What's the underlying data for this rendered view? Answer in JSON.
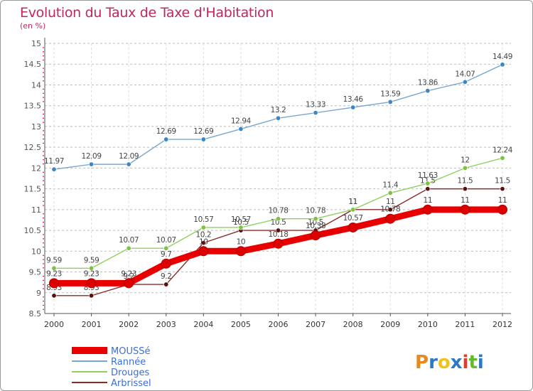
{
  "title": "Evolution du Taux de Taxe d'Habitation",
  "subtitle": "(en %)",
  "brand": {
    "text": "Proxiti"
  },
  "colors": {
    "title": "#c0285a",
    "axis": "#555555",
    "grid": "#bbbbbb",
    "tick_marks": "#e0204a",
    "brand_letters": [
      "#e8891c",
      "#2b79c6",
      "#f0c21a",
      "#2b79c6",
      "#e83a2a",
      "#66b82f",
      "#2b79c6"
    ]
  },
  "chart_data": {
    "type": "line",
    "title": "Evolution du Taux de Taxe d'Habitation",
    "subtitle": "(en %)",
    "xlabel": "",
    "ylabel": "",
    "x": [
      "2000",
      "2001",
      "2002",
      "2003",
      "2004",
      "2005",
      "2006",
      "2007",
      "2008",
      "2009",
      "2010",
      "2011",
      "2012"
    ],
    "ylim": [
      8.5,
      15
    ],
    "yticks": [
      "8.5",
      "9",
      "9.5",
      "10",
      "10.5",
      "11",
      "11.5",
      "12",
      "12.5",
      "13",
      "13.5",
      "14",
      "14.5",
      "15"
    ],
    "grid": "horizontal dashed",
    "legend_position": "bottom-left",
    "series": [
      {
        "name": "Arbrissel",
        "color": "#8b2c2c",
        "marker": "#5a1010",
        "values": [
          8.93,
          8.93,
          9.2,
          9.2,
          10.2,
          10.5,
          10.5,
          10.5,
          11,
          11,
          11.5,
          11.5,
          11.5
        ],
        "labels": [
          "8.93",
          "8.93",
          "9.2",
          "9.2",
          "10.2",
          "10.5",
          "10.5",
          "10.5",
          "11",
          "11",
          "11.5",
          "11.5",
          "11.5"
        ]
      },
      {
        "name": "Drouges",
        "color": "#90d060",
        "marker": "#7cc33f",
        "values": [
          9.59,
          9.59,
          10.07,
          10.07,
          10.57,
          10.57,
          10.78,
          10.78,
          11,
          11.4,
          11.63,
          12,
          12.24
        ],
        "labels": [
          "9.59",
          "9.59",
          "10.07",
          "10.07",
          "10.57",
          "10.57",
          "10.78",
          "10.78",
          "11",
          "11.4",
          "11.63",
          "12",
          "12.24"
        ]
      },
      {
        "name": "Rannée",
        "color": "#7aa7d0",
        "marker": "#3d86c6",
        "values": [
          11.97,
          12.09,
          12.09,
          12.69,
          12.69,
          12.94,
          13.2,
          13.33,
          13.46,
          13.59,
          13.86,
          14.07,
          14.49
        ],
        "labels": [
          "11.97",
          "12.09",
          "12.09",
          "12.69",
          "12.69",
          "12.94",
          "13.2",
          "13.33",
          "13.46",
          "13.59",
          "13.86",
          "14.07",
          "14.49"
        ]
      },
      {
        "name": "MOUSSé",
        "color": "#e80000",
        "marker": "#dd0000",
        "values": [
          9.23,
          9.23,
          9.23,
          9.7,
          10,
          10,
          10.18,
          10.38,
          10.57,
          10.78,
          11,
          11,
          11
        ],
        "labels": [
          "9.23",
          "9.23",
          "9.23",
          "9.7",
          "10",
          "10",
          "10.18",
          "10.38",
          "10.57",
          "10.78",
          "11",
          "11",
          "11"
        ]
      }
    ],
    "legend": [
      {
        "name": "MOUSSé",
        "color": "#e80000"
      },
      {
        "name": "Rannée",
        "color": "#7aa7d0"
      },
      {
        "name": "Drouges",
        "color": "#90d060"
      },
      {
        "name": "Arbrissel",
        "color": "#8b2c2c"
      }
    ]
  }
}
